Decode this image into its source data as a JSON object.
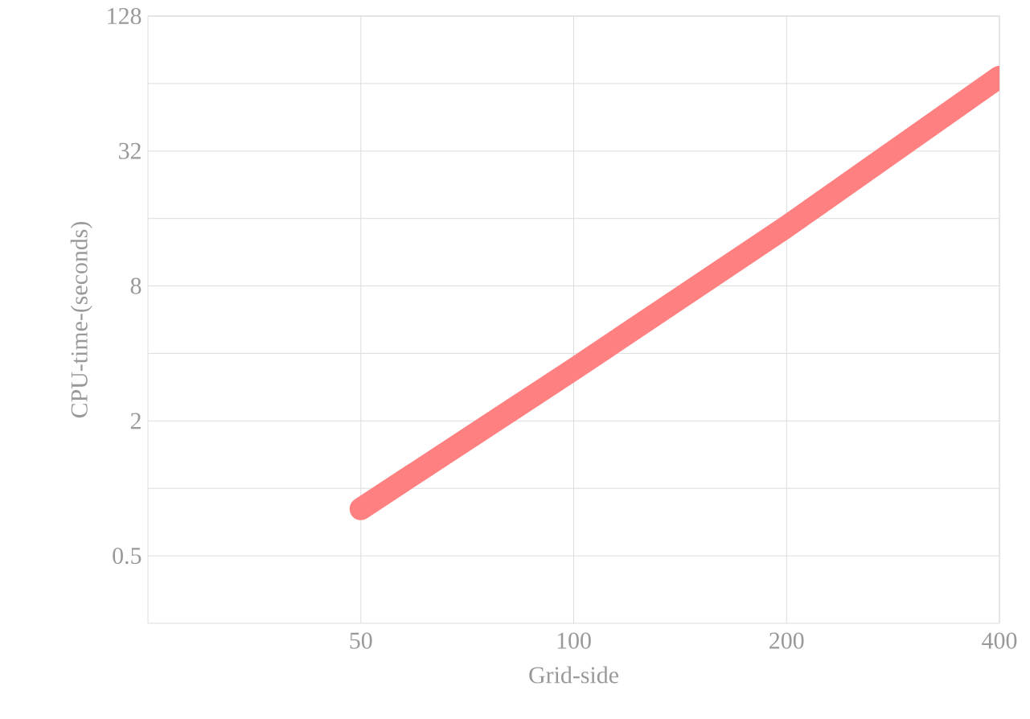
{
  "chart_data": {
    "type": "line",
    "xlabel": "Grid-side",
    "ylabel": "CPU-time-(seconds)",
    "x": [
      50,
      100,
      200,
      400
    ],
    "series": [
      {
        "color": "#ff8080",
        "values": [
          0.81,
          3.4,
          14.7,
          68.5
        ]
      }
    ],
    "log": "xy",
    "grid": true,
    "marker": "none",
    "line_style": "solid",
    "xlim": [
      25,
      400
    ],
    "xticks": [
      50,
      100,
      200,
      400
    ],
    "ylim": [
      0.25,
      128
    ],
    "yticks": [
      0.5,
      {
        "value": 1,
        "label": null
      },
      2,
      {
        "value": 4,
        "label": null
      },
      8,
      {
        "value": 16,
        "label": null
      },
      32,
      {
        "value": 64,
        "label": null
      },
      128
    ]
  }
}
